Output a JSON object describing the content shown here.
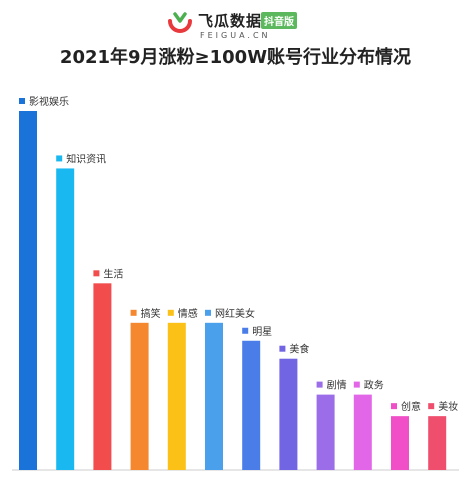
{
  "logo": {
    "name": "飞瓜数据",
    "badge": "抖音版",
    "domain": "FEIGUA.CN"
  },
  "chart_data": {
    "type": "bar",
    "title": "2021年9月涨粉≥100W账号行业分布情况",
    "categories": [
      "影视娱乐",
      "知识资讯",
      "生活",
      "搞笑",
      "情感",
      "网红美女",
      "明星",
      "美食",
      "剧情",
      "政务",
      "创意",
      "美妆"
    ],
    "values": [
      100,
      84,
      52,
      41,
      41,
      41,
      36,
      31,
      21,
      21,
      15,
      15
    ],
    "ylim": [
      0,
      100
    ],
    "legend": "label above each bar",
    "grid": false,
    "colors": [
      "#1a73d9",
      "#1ab8f0",
      "#f24c4c",
      "#f5872e",
      "#fbc117",
      "#4aa0eb",
      "#4a7de8",
      "#7165e3",
      "#9b6de8",
      "#e266e8",
      "#f04fc8",
      "#ef4e6c"
    ]
  }
}
